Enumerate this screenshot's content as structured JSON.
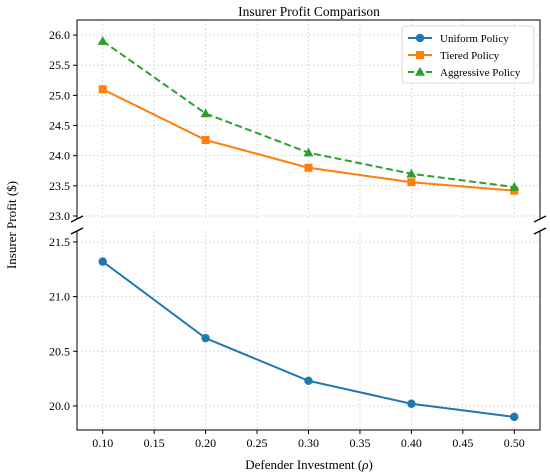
{
  "chart_data": {
    "type": "line",
    "title": "Insurer Profit Comparison",
    "xlabel": "Defender Investment",
    "xlabel_symbol": "ρ",
    "ylabel": "Insurer Profit ($)",
    "broken_y_axis": true,
    "grid": true,
    "legend_position": "top-right",
    "x": [
      0.1,
      0.2,
      0.3,
      0.4,
      0.5
    ],
    "xlim": [
      0.075,
      0.525
    ],
    "xticks": [
      "0.10",
      "0.15",
      "0.20",
      "0.25",
      "0.30",
      "0.35",
      "0.40",
      "0.45",
      "0.50"
    ],
    "panels": {
      "top": {
        "ylim": [
          22.95,
          26.25
        ],
        "yticks": [
          "23.0",
          "23.5",
          "24.0",
          "24.5",
          "25.0",
          "25.5",
          "26.0"
        ]
      },
      "bottom": {
        "ylim": [
          19.78,
          21.6
        ],
        "yticks": [
          "20.0",
          "20.5",
          "21.0",
          "21.5"
        ]
      }
    },
    "series": [
      {
        "name": "Uniform Policy",
        "values": [
          21.32,
          20.62,
          20.23,
          20.02,
          19.9
        ],
        "color": "#1f77b4",
        "marker": "circle",
        "linestyle": "solid",
        "panel": "bottom"
      },
      {
        "name": "Tiered Policy",
        "values": [
          25.1,
          24.26,
          23.8,
          23.56,
          23.42
        ],
        "color": "#ff7f0e",
        "marker": "square",
        "linestyle": "solid",
        "panel": "top"
      },
      {
        "name": "Aggressive Policy",
        "values": [
          25.9,
          24.7,
          24.05,
          23.7,
          23.48
        ],
        "color": "#2ca02c",
        "marker": "triangle",
        "linestyle": "dashed",
        "panel": "top"
      }
    ]
  }
}
